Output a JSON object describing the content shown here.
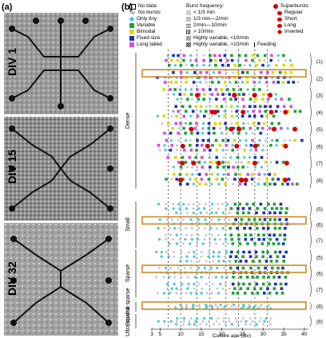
{
  "panels": {
    "a": "(a)",
    "b": "(b)"
  },
  "micrographs": [
    {
      "label": "DIV 1"
    },
    {
      "label": "DIV 15"
    },
    {
      "label": "DIV 32"
    }
  ],
  "legend": {
    "activity": [
      {
        "label": "No data",
        "color": "#ffffff",
        "shape": "square-outline"
      },
      {
        "label": "No bursts",
        "color": "#bdbdbd",
        "shape": "small-dot"
      },
      {
        "label": "Only tiny",
        "color": "#4fc3d9",
        "shape": "diamond"
      },
      {
        "label": "Variable",
        "color": "#1ea03a",
        "shape": "square"
      },
      {
        "label": "Bimodal",
        "color": "#e3d800",
        "shape": "square"
      },
      {
        "label": "Fixed size",
        "color": "#1a2fb8",
        "shape": "square"
      },
      {
        "label": "Long tailed",
        "color": "#d54fd8",
        "shape": "square"
      }
    ],
    "burst_frequency_title": "Burst frequency:",
    "burst_frequency": [
      {
        "label": "< 1/3 min"
      },
      {
        "label": "1/3 min—2/min"
      },
      {
        "label": "2/min—10/min"
      },
      {
        "label": "> 10/min"
      },
      {
        "label": "Highly variable, <10/min"
      },
      {
        "label": "Highly variable, >10/min"
      }
    ],
    "superbursts_title": "Superbursts",
    "superbursts": [
      {
        "label": "Regular"
      },
      {
        "label": "Short"
      },
      {
        "label": "Long"
      },
      {
        "label": "Inverted"
      }
    ],
    "feeding": "Feeding"
  },
  "chart_data": {
    "type": "scatter",
    "xlabel": "Culture age (div)",
    "x_ticks": [
      "3",
      "5",
      "10",
      "15",
      "20",
      "25",
      "30",
      "35",
      "40"
    ],
    "xlim": [
      3,
      41
    ],
    "groups": [
      {
        "name": "Dense",
        "rows": [
          "(1)",
          "(2)",
          "(3)",
          "(4)",
          "(5)",
          "(6)",
          "(7)",
          "(8)"
        ]
      },
      {
        "name": "Small",
        "rows": [
          "(5)",
          "(6)",
          "(7)"
        ]
      },
      {
        "name": "Sparse",
        "rows": [
          "(5)",
          "(6)",
          "(7)"
        ]
      },
      {
        "name": "Small & sparse",
        "rows": [
          "(8)"
        ]
      },
      {
        "name": "Ultra sparse",
        "rows": [
          "(8)"
        ]
      }
    ],
    "colors": {
      "no_bursts": "#bdbdbd",
      "only_tiny": "#4fc3d9",
      "variable": "#1ea03a",
      "bimodal": "#e3d800",
      "fixed": "#1a2fb8",
      "long_tailed": "#d54fd8",
      "superburst": "#d40000",
      "highlight": "#c98a2a"
    }
  }
}
